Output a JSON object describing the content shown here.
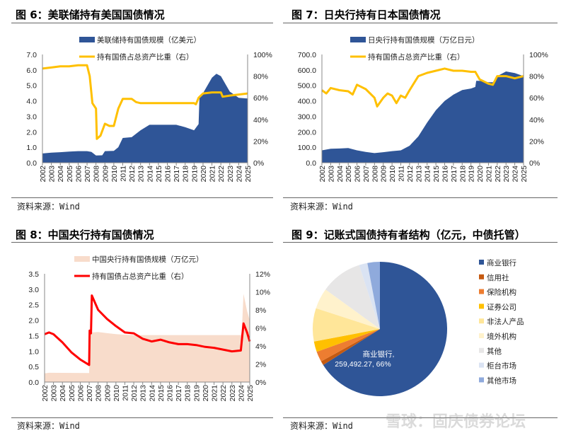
{
  "panels": [
    {
      "title": "图 6：美联储持有美国国债情况",
      "source": "资料来源：Wind"
    },
    {
      "title": "图 7：日央行持有日本国债情况",
      "source": "资料来源：Wind"
    },
    {
      "title": "图 8：中国央行持有国债情况",
      "source": "资料来源：Wind"
    },
    {
      "title": "图 9：记账式国债持有者结构（亿元，中债托管）",
      "source": "资料来源：Wind"
    }
  ],
  "watermark": "雪球：固庆债券论坛",
  "chart_data": [
    {
      "type": "area+line",
      "title": "图 6：美联储持有美国国债情况",
      "x_ticks": [
        "2002",
        "2003",
        "2004",
        "2005",
        "2006",
        "2007",
        "2008",
        "2009",
        "2010",
        "2011",
        "2012",
        "2013",
        "2014",
        "2015",
        "2016",
        "2017",
        "2018",
        "2019",
        "2020",
        "2021",
        "2022",
        "2023",
        "2024",
        "2025"
      ],
      "ylim": [
        0,
        7
      ],
      "y_ticks": [
        "0.0",
        "1.0",
        "2.0",
        "3.0",
        "4.0",
        "5.0",
        "6.0",
        "7.0"
      ],
      "y2lim": [
        0,
        100
      ],
      "y2_ticks": [
        "0%",
        "20%",
        "40%",
        "60%",
        "80%",
        "100%"
      ],
      "area_color": "#2f5597",
      "line_color": "#ffc000",
      "series": [
        {
          "name": "美联储持有国债规模（亿美元）",
          "kind": "area",
          "x": [
            2002,
            2003,
            2004,
            2005,
            2006,
            2007,
            2007.5,
            2008,
            2008.7,
            2009,
            2010,
            2010.5,
            2011,
            2012,
            2013,
            2014,
            2015,
            2016,
            2017,
            2018,
            2019,
            2019.5,
            2019.6,
            2020,
            2021,
            2021.5,
            2022,
            2023,
            2024,
            2025
          ],
          "y": [
            0.6,
            0.65,
            0.68,
            0.72,
            0.75,
            0.75,
            0.7,
            0.47,
            0.48,
            0.75,
            0.77,
            1.0,
            1.6,
            1.65,
            2.1,
            2.45,
            2.45,
            2.45,
            2.45,
            2.3,
            2.1,
            2.5,
            4.2,
            4.5,
            5.5,
            5.75,
            5.6,
            4.6,
            4.2,
            4.15
          ]
        },
        {
          "name": "持有国债占总资产比重（右）",
          "kind": "line",
          "axis": "right",
          "x": [
            2002,
            2003,
            2004,
            2005,
            2006,
            2007,
            2007.3,
            2007.6,
            2008,
            2008.1,
            2008.5,
            2009,
            2009.5,
            2010,
            2010.5,
            2011,
            2012,
            2012.5,
            2013,
            2014,
            2015,
            2016,
            2017,
            2018,
            2019,
            2019.2,
            2019.5,
            2020,
            2021,
            2022,
            2022.2,
            2023,
            2024,
            2025
          ],
          "y": [
            87,
            88,
            89,
            89,
            90,
            90,
            80,
            55,
            50,
            22,
            25,
            36,
            34,
            34,
            50,
            59,
            59,
            56,
            55,
            55,
            55,
            55,
            55,
            55,
            55,
            54,
            60,
            64,
            65,
            65,
            61,
            62,
            63,
            64
          ]
        }
      ]
    },
    {
      "type": "area+line",
      "title": "图 7：日央行持有日本国债情况",
      "x_ticks": [
        "2002",
        "2003",
        "2004",
        "2005",
        "2006",
        "2007",
        "2008",
        "2009",
        "2010",
        "2011",
        "2012",
        "2013",
        "2014",
        "2015",
        "2016",
        "2017",
        "2018",
        "2019",
        "2020",
        "2021",
        "2022",
        "2023",
        "2024",
        "2025"
      ],
      "ylim": [
        0,
        700
      ],
      "y_ticks": [
        "0.0",
        "100.0",
        "200.0",
        "300.0",
        "400.0",
        "500.0",
        "600.0",
        "700.0"
      ],
      "y2lim": [
        0,
        100
      ],
      "y2_ticks": [
        "0%",
        "20%",
        "40%",
        "60%",
        "80%",
        "100%"
      ],
      "area_color": "#2f5597",
      "line_color": "#ffc000",
      "series": [
        {
          "name": "日央行持有国债规模（万亿日元）",
          "kind": "area",
          "x": [
            2002,
            2003,
            2004,
            2005,
            2006,
            2007,
            2008,
            2009,
            2010,
            2011,
            2012,
            2013,
            2014,
            2015,
            2016,
            2017,
            2018,
            2019,
            2019.5,
            2019.6,
            2020,
            2021,
            2021.5,
            2022,
            2023,
            2024,
            2025
          ],
          "y": [
            80,
            90,
            92,
            95,
            80,
            70,
            62,
            68,
            75,
            80,
            110,
            170,
            260,
            340,
            400,
            440,
            470,
            480,
            490,
            530,
            530,
            520,
            520,
            560,
            590,
            580,
            560
          ]
        },
        {
          "name": "持有国债占总资产比重（右）",
          "kind": "line",
          "axis": "right",
          "x": [
            2002,
            2002.5,
            2003,
            2004,
            2005,
            2005.5,
            2006,
            2007,
            2008,
            2008.3,
            2009,
            2009.5,
            2010,
            2010.5,
            2011,
            2011.5,
            2012,
            2013,
            2014,
            2015,
            2016,
            2017,
            2018,
            2019,
            2019.5,
            2020,
            2021,
            2021.5,
            2022,
            2023,
            2024,
            2025
          ],
          "y": [
            67,
            64,
            69,
            67,
            66,
            63,
            72,
            68,
            60,
            52,
            60,
            64,
            62,
            55,
            62,
            60,
            67,
            80,
            83,
            85,
            87,
            85,
            85,
            84,
            84,
            77,
            73,
            72,
            80,
            80,
            78,
            80
          ]
        }
      ]
    },
    {
      "type": "area+line",
      "title": "图 8：中国央行持有国债情况",
      "x_ticks": [
        "2002",
        "2003",
        "2004",
        "2005",
        "2006",
        "2007",
        "2008",
        "2009",
        "2010",
        "2011",
        "2012",
        "2013",
        "2014",
        "2015",
        "2016",
        "2017",
        "2018",
        "2019",
        "2020",
        "2021",
        "2022",
        "2023",
        "2024",
        "2025"
      ],
      "ylim": [
        0,
        3.5
      ],
      "y_ticks": [
        "0.0",
        "0.5",
        "1.0",
        "1.5",
        "2.0",
        "2.5",
        "3.0",
        "3.5"
      ],
      "y2lim": [
        0,
        12
      ],
      "y2_ticks": [
        "0%",
        "2%",
        "4%",
        "6%",
        "8%",
        "10%",
        "12%"
      ],
      "area_color": "#f8dccb",
      "line_color": "#ff0000",
      "series": [
        {
          "name": "中国央行持有国债规模（万亿元）",
          "kind": "area",
          "x": [
            2002,
            2002.5,
            2007,
            2007.05,
            2008,
            2009,
            2010,
            2011,
            2012,
            2013,
            2014,
            2015,
            2016,
            2017,
            2018,
            2019,
            2020,
            2021,
            2022,
            2023,
            2024,
            2024.1,
            2024.3,
            2024.7,
            2025
          ],
          "y": [
            0.28,
            0.3,
            0.29,
            1.6,
            1.62,
            1.58,
            1.55,
            1.53,
            1.52,
            1.52,
            1.52,
            1.52,
            1.52,
            1.52,
            1.52,
            1.52,
            1.52,
            1.52,
            1.52,
            1.52,
            1.52,
            1.6,
            2.85,
            2.3,
            2.0
          ]
        },
        {
          "name": "持有国债占总资产比重（右）",
          "kind": "line",
          "axis": "right",
          "x": [
            2002,
            2002.5,
            2003,
            2004,
            2005,
            2006,
            2007,
            2007.05,
            2007.2,
            2007.3,
            2008,
            2009,
            2010,
            2011,
            2012,
            2013,
            2014,
            2015,
            2016,
            2017,
            2018,
            2019,
            2020,
            2021,
            2022,
            2023,
            2024,
            2024.3,
            2024.7,
            2025
          ],
          "y": [
            5.3,
            5.5,
            5.3,
            4.4,
            3.3,
            2.5,
            1.9,
            5.7,
            5.4,
            9.6,
            8.0,
            7.0,
            6.2,
            5.5,
            5.4,
            4.8,
            4.5,
            4.7,
            4.4,
            4.2,
            4.2,
            4.1,
            3.9,
            3.8,
            3.6,
            3.4,
            3.5,
            6.5,
            5.5,
            4.5
          ]
        }
      ]
    },
    {
      "type": "pie",
      "title": "图 9：记账式国债持有者结构（亿元，中债托管）",
      "data_label": "商业银行,\n259,492.27, 66%",
      "data_label_lines": [
        "商业银行,",
        "259,492.27, 66%"
      ],
      "legend_position": "right",
      "slices": [
        {
          "label": "商业银行",
          "percent": 66,
          "color": "#2f5597"
        },
        {
          "label": "信用社",
          "percent": 1,
          "color": "#c55a11"
        },
        {
          "label": "保险机构",
          "percent": 2.5,
          "color": "#ed7d31"
        },
        {
          "label": "证券公司",
          "percent": 2.5,
          "color": "#ffc000"
        },
        {
          "label": "非法人产品",
          "percent": 8,
          "color": "#ffe699"
        },
        {
          "label": "境外机构",
          "percent": 5,
          "color": "#fff2cc"
        },
        {
          "label": "其他",
          "percent": 10,
          "color": "#e7e6e6"
        },
        {
          "label": "柜台市场",
          "percent": 2,
          "color": "#dae3f3"
        },
        {
          "label": "其他市场",
          "percent": 3,
          "color": "#8faadc"
        }
      ]
    }
  ]
}
